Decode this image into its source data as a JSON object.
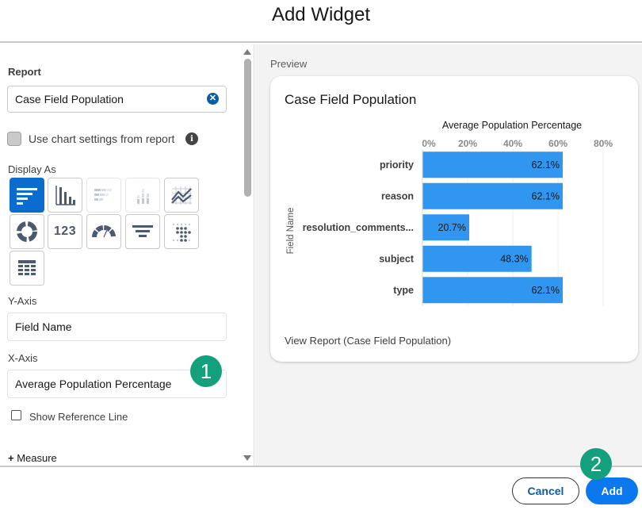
{
  "dialog": {
    "title": "Add Widget"
  },
  "left": {
    "report_label": "Report",
    "report_value": "Case Field Population",
    "use_chart_settings": {
      "label": "Use chart settings from report",
      "checked": false
    },
    "display_as_label": "Display As",
    "display_types": [
      {
        "name": "horizontal-bar",
        "selected": true
      },
      {
        "name": "vertical-bar",
        "selected": false
      },
      {
        "name": "stacked-horizontal-bar",
        "selected": false
      },
      {
        "name": "stacked-vertical-bar",
        "selected": false
      },
      {
        "name": "line",
        "selected": false
      },
      {
        "name": "donut",
        "selected": false
      },
      {
        "name": "metric",
        "selected": false
      },
      {
        "name": "gauge",
        "selected": false
      },
      {
        "name": "funnel",
        "selected": false
      },
      {
        "name": "scatter",
        "selected": false
      },
      {
        "name": "table",
        "selected": false
      }
    ],
    "metric_tile_text": "123",
    "y_axis_label": "Y-Axis",
    "y_axis_value": "Field Name",
    "x_axis_label": "X-Axis",
    "x_axis_value": "Average Population Percentage",
    "show_reference_line": {
      "label": "Show Reference Line",
      "checked": false
    },
    "measure_plus": "+",
    "measure_label": " Measure"
  },
  "preview": {
    "label": "Preview",
    "card_title": "Case Field Population",
    "view_report": "View Report (Case Field Population)"
  },
  "chart_data": {
    "type": "bar",
    "orientation": "horizontal",
    "title": "Average Population Percentage",
    "ylabel": "Field Name",
    "categories": [
      "priority",
      "reason",
      "resolution_comments...",
      "subject",
      "type"
    ],
    "values": [
      62.1,
      62.1,
      20.7,
      48.3,
      62.1
    ],
    "value_labels": [
      "62.1%",
      "62.1%",
      "20.7%",
      "48.3%",
      "62.1%"
    ],
    "xlim": [
      0,
      80
    ],
    "x_ticks": [
      "0%",
      "20%",
      "40%",
      "60%",
      "80%"
    ],
    "bar_color": "#3196f0",
    "grid": true
  },
  "footer": {
    "cancel_label": "Cancel",
    "add_label": "Add"
  },
  "badges": [
    "1",
    "2"
  ],
  "colors": {
    "accent": "#0b78f0",
    "badge": "#14a07c",
    "selected_tile": "#0b6ccf"
  }
}
